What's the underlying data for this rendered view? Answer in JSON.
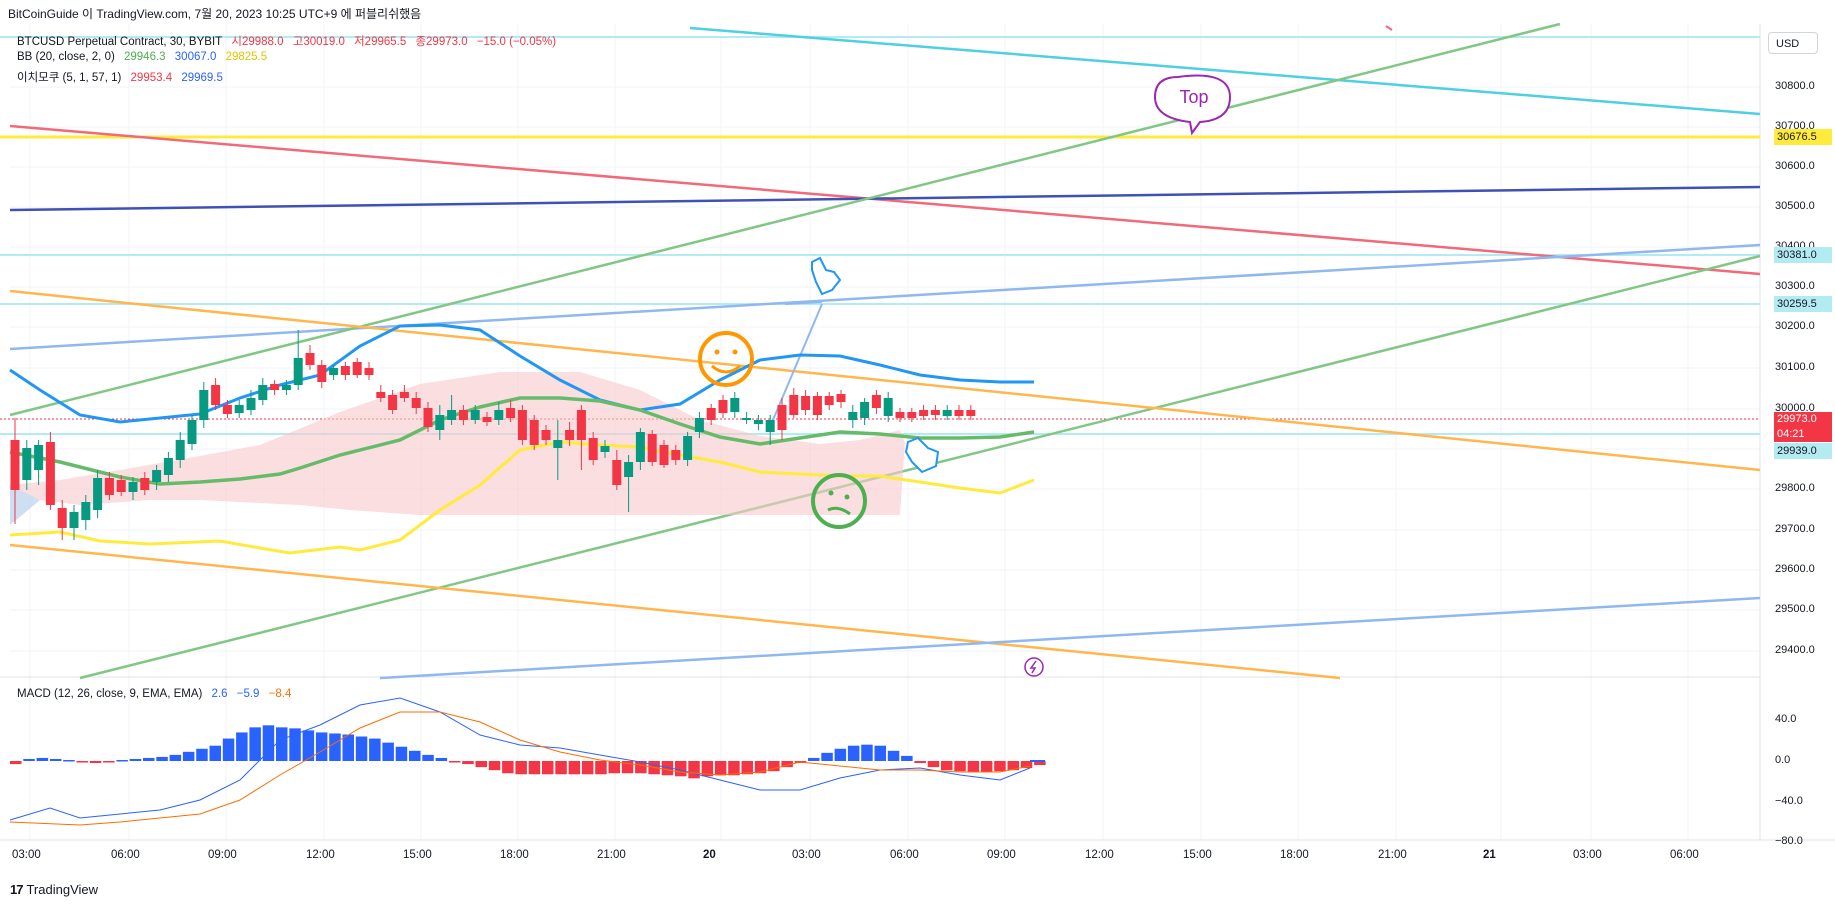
{
  "header": {
    "text": "BitCoinGuide 이 TradingView.com, 7월 20, 2023 10:25 UTC+9 에 퍼블리쉬했음"
  },
  "legend": {
    "symbol": "BTCUSD Perpetual Contract, 30, BYBIT",
    "open": "시29988.0",
    "high": "고30019.0",
    "low": "저29965.5",
    "close": "종29973.0",
    "change": "−15.0 (−0.05%)",
    "bb_label": "BB (20, close, 2, 0)",
    "bb_basis": "29946.3",
    "bb_upper": "30067.0",
    "bb_lower": "29825.5",
    "ichimoku_label": "이치모쿠 (5, 1, 57, 1)",
    "ichimoku_a": "29953.4",
    "ichimoku_b": "29969.5",
    "macd_label": "MACD (12, 26, close, 9, EMA, EMA)",
    "macd_hist": "2.6",
    "macd_macd": "−5.9",
    "macd_signal": "−8.4"
  },
  "currency": "USD",
  "price_axis": {
    "ticks": [
      "30800.0",
      "30700.0",
      "30600.0",
      "30500.0",
      "30400.0",
      "30300.0",
      "30200.0",
      "30100.0",
      "30000.0",
      "29900.0",
      "29800.0",
      "29700.0",
      "29600.0",
      "29500.0",
      "29400.0"
    ],
    "labels": {
      "level_yellow": "30676.5",
      "level_cyan1": "30381.0",
      "level_cyan2": "30259.5",
      "last_price": "29973.0",
      "countdown": "04:21",
      "level_cyan3": "29939.0"
    }
  },
  "macd_axis": {
    "ticks": [
      "40.0",
      "0.0",
      "−40.0",
      "−80.0"
    ]
  },
  "time_axis": {
    "labels": [
      "03:00",
      "06:00",
      "09:00",
      "12:00",
      "15:00",
      "18:00",
      "21:00",
      "20",
      "03:00",
      "06:00",
      "09:00",
      "12:00",
      "15:00",
      "18:00",
      "21:00",
      "21",
      "03:00",
      "06:00"
    ]
  },
  "annotations": {
    "top_bubble": "Top"
  },
  "brand": "TradingView",
  "colors": {
    "bull": "#089981",
    "bear": "#f23645",
    "bb_basis": "#4caf50",
    "bb_upper": "#2962ff",
    "bb_lower": "#ffeb3b",
    "macd_hist_pos": "#2962ff",
    "macd_hist_neg": "#f23645",
    "cloud": "#f8c8cc"
  }
}
